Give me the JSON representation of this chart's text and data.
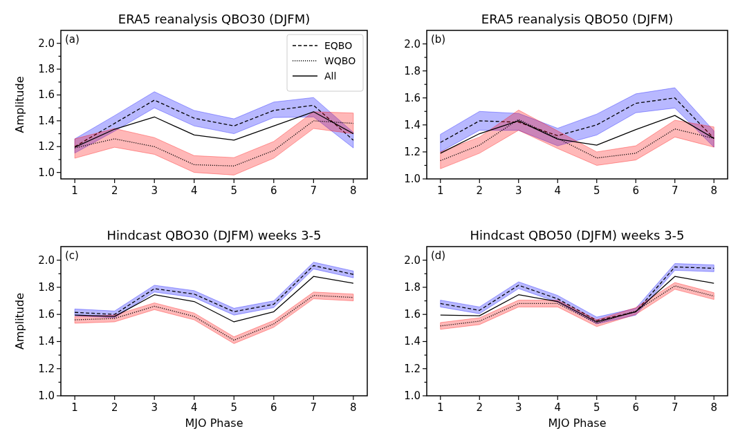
{
  "chart_data": [
    {
      "type": "line",
      "title": "ERA5 reanalysis QBO30 (DJFM)",
      "ylabel": "Amplitude",
      "annotations": [
        "(a)"
      ],
      "x": [
        1,
        2,
        3,
        4,
        5,
        6,
        7,
        8
      ],
      "xlim": [
        0.65,
        8.35
      ],
      "xticks": [
        1,
        2,
        3,
        4,
        5,
        6,
        7,
        8
      ],
      "ylim": [
        0.95,
        2.1
      ],
      "yticks": [
        {
          "value": 1.0,
          "label": "1.0"
        },
        {
          "value": 1.1,
          "label": null
        },
        {
          "value": 1.2,
          "label": "1.2"
        },
        {
          "value": 1.3,
          "label": null
        },
        {
          "value": 1.4,
          "label": "1.4"
        },
        {
          "value": 1.5,
          "label": null
        },
        {
          "value": 1.6,
          "label": "1.6"
        },
        {
          "value": 1.7,
          "label": null
        },
        {
          "value": 1.8,
          "label": "1.8"
        },
        {
          "value": 1.9,
          "label": null
        },
        {
          "value": 2.0,
          "label": "2.0"
        }
      ],
      "legend": "top right",
      "series": [
        {
          "name": "EQBO",
          "color": "#000000",
          "line_style": "dashed",
          "values": [
            1.2,
            1.38,
            1.56,
            1.42,
            1.36,
            1.48,
            1.52,
            1.25
          ],
          "lower": [
            1.15,
            1.32,
            1.5,
            1.36,
            1.3,
            1.425,
            1.43,
            1.19
          ],
          "upper": [
            1.26,
            1.44,
            1.625,
            1.48,
            1.415,
            1.545,
            1.58,
            1.31
          ]
        },
        {
          "name": "WQBO",
          "color": "#000000",
          "line_style": "dotted",
          "values": [
            1.19,
            1.26,
            1.2,
            1.06,
            1.05,
            1.17,
            1.4,
            1.38
          ],
          "lower": [
            1.11,
            1.195,
            1.14,
            1.0,
            0.98,
            1.11,
            1.34,
            1.3
          ],
          "upper": [
            1.26,
            1.34,
            1.27,
            1.13,
            1.115,
            1.24,
            1.47,
            1.46
          ]
        },
        {
          "name": "All",
          "color": "#000000",
          "line_style": "solid",
          "values": [
            1.195,
            1.335,
            1.43,
            1.29,
            1.25,
            1.36,
            1.47,
            1.3
          ]
        }
      ]
    },
    {
      "type": "line",
      "title": "ERA5 reanalysis QBO50 (DJFM)",
      "annotations": [
        "(b)"
      ],
      "x": [
        1,
        2,
        3,
        4,
        5,
        6,
        7,
        8
      ],
      "xlim": [
        0.65,
        8.35
      ],
      "xticks": [
        1,
        2,
        3,
        4,
        5,
        6,
        7,
        8
      ],
      "ylim": [
        1.0,
        2.1
      ],
      "yticks": [
        {
          "value": 1.0,
          "label": "1.0"
        },
        {
          "value": 1.1,
          "label": null
        },
        {
          "value": 1.2,
          "label": "1.2"
        },
        {
          "value": 1.3,
          "label": null
        },
        {
          "value": 1.4,
          "label": "1.4"
        },
        {
          "value": 1.5,
          "label": null
        },
        {
          "value": 1.6,
          "label": "1.6"
        },
        {
          "value": 1.7,
          "label": null
        },
        {
          "value": 1.8,
          "label": "1.8"
        },
        {
          "value": 1.9,
          "label": null
        },
        {
          "value": 2.0,
          "label": "2.0"
        }
      ],
      "series": [
        {
          "color": "#000000",
          "line_style": "dashed",
          "values": [
            1.27,
            1.43,
            1.42,
            1.32,
            1.4,
            1.56,
            1.6,
            1.3
          ],
          "lower": [
            1.2,
            1.36,
            1.36,
            1.245,
            1.325,
            1.49,
            1.525,
            1.235
          ],
          "upper": [
            1.33,
            1.5,
            1.485,
            1.375,
            1.48,
            1.63,
            1.675,
            1.355
          ]
        },
        {
          "color": "#000000",
          "line_style": "dotted",
          "values": [
            1.135,
            1.25,
            1.44,
            1.3,
            1.155,
            1.19,
            1.37,
            1.3
          ],
          "lower": [
            1.075,
            1.19,
            1.36,
            1.225,
            1.1,
            1.14,
            1.31,
            1.235
          ],
          "upper": [
            1.2,
            1.31,
            1.51,
            1.355,
            1.2,
            1.245,
            1.435,
            1.385
          ]
        },
        {
          "color": "#000000",
          "line_style": "solid",
          "values": [
            1.19,
            1.335,
            1.43,
            1.295,
            1.25,
            1.365,
            1.47,
            1.3
          ]
        }
      ]
    },
    {
      "type": "line",
      "title": "Hindcast QBO30 (DJFM) weeks 3-5",
      "ylabel": "Amplitude",
      "xlabel": "MJO Phase",
      "annotations": [
        "(c)"
      ],
      "x": [
        1,
        2,
        3,
        4,
        5,
        6,
        7,
        8
      ],
      "xlim": [
        0.65,
        8.35
      ],
      "xticks": [
        1,
        2,
        3,
        4,
        5,
        6,
        7,
        8
      ],
      "ylim": [
        1.0,
        2.1
      ],
      "yticks": [
        {
          "value": 1.0,
          "label": "1.0"
        },
        {
          "value": 1.1,
          "label": null
        },
        {
          "value": 1.2,
          "label": "1.2"
        },
        {
          "value": 1.3,
          "label": null
        },
        {
          "value": 1.4,
          "label": "1.4"
        },
        {
          "value": 1.5,
          "label": null
        },
        {
          "value": 1.6,
          "label": "1.6"
        },
        {
          "value": 1.7,
          "label": null
        },
        {
          "value": 1.8,
          "label": "1.8"
        },
        {
          "value": 1.9,
          "label": null
        },
        {
          "value": 2.0,
          "label": "2.0"
        }
      ],
      "series": [
        {
          "color": "#000000",
          "line_style": "dashed",
          "values": [
            1.615,
            1.6,
            1.79,
            1.75,
            1.62,
            1.675,
            1.96,
            1.895
          ],
          "lower": [
            1.59,
            1.575,
            1.765,
            1.725,
            1.595,
            1.65,
            1.935,
            1.87
          ],
          "upper": [
            1.64,
            1.625,
            1.815,
            1.775,
            1.645,
            1.7,
            1.985,
            1.92
          ]
        },
        {
          "color": "#000000",
          "line_style": "dotted",
          "values": [
            1.56,
            1.57,
            1.66,
            1.585,
            1.41,
            1.53,
            1.74,
            1.725
          ],
          "lower": [
            1.535,
            1.545,
            1.635,
            1.56,
            1.385,
            1.505,
            1.715,
            1.7
          ],
          "upper": [
            1.585,
            1.595,
            1.685,
            1.61,
            1.435,
            1.555,
            1.765,
            1.75
          ]
        },
        {
          "color": "#000000",
          "line_style": "solid",
          "values": [
            1.595,
            1.585,
            1.745,
            1.695,
            1.545,
            1.62,
            1.88,
            1.83
          ]
        }
      ]
    },
    {
      "type": "line",
      "title": "Hindcast QBO50 (DJFM) weeks 3-5",
      "xlabel": "MJO Phase",
      "annotations": [
        "(d)"
      ],
      "x": [
        1,
        2,
        3,
        4,
        5,
        6,
        7,
        8
      ],
      "xlim": [
        0.65,
        8.35
      ],
      "xticks": [
        1,
        2,
        3,
        4,
        5,
        6,
        7,
        8
      ],
      "ylim": [
        1.0,
        2.1
      ],
      "yticks": [
        {
          "value": 1.0,
          "label": "1.0"
        },
        {
          "value": 1.1,
          "label": null
        },
        {
          "value": 1.2,
          "label": "1.2"
        },
        {
          "value": 1.3,
          "label": null
        },
        {
          "value": 1.4,
          "label": "1.4"
        },
        {
          "value": 1.5,
          "label": null
        },
        {
          "value": 1.6,
          "label": "1.6"
        },
        {
          "value": 1.7,
          "label": null
        },
        {
          "value": 1.8,
          "label": "1.8"
        },
        {
          "value": 1.9,
          "label": null
        },
        {
          "value": 2.0,
          "label": "2.0"
        }
      ],
      "series": [
        {
          "color": "#000000",
          "line_style": "dashed",
          "values": [
            1.68,
            1.63,
            1.815,
            1.715,
            1.555,
            1.62,
            1.95,
            1.94
          ],
          "lower": [
            1.655,
            1.605,
            1.79,
            1.69,
            1.53,
            1.595,
            1.925,
            1.915
          ],
          "upper": [
            1.705,
            1.655,
            1.84,
            1.74,
            1.58,
            1.645,
            1.975,
            1.965
          ]
        },
        {
          "color": "#000000",
          "line_style": "dotted",
          "values": [
            1.515,
            1.55,
            1.68,
            1.68,
            1.535,
            1.625,
            1.81,
            1.735
          ],
          "lower": [
            1.49,
            1.525,
            1.655,
            1.655,
            1.51,
            1.6,
            1.785,
            1.71
          ],
          "upper": [
            1.54,
            1.575,
            1.705,
            1.705,
            1.56,
            1.65,
            1.835,
            1.76
          ]
        },
        {
          "color": "#000000",
          "line_style": "solid",
          "values": [
            1.595,
            1.59,
            1.745,
            1.695,
            1.545,
            1.62,
            1.88,
            1.83
          ]
        }
      ]
    }
  ]
}
